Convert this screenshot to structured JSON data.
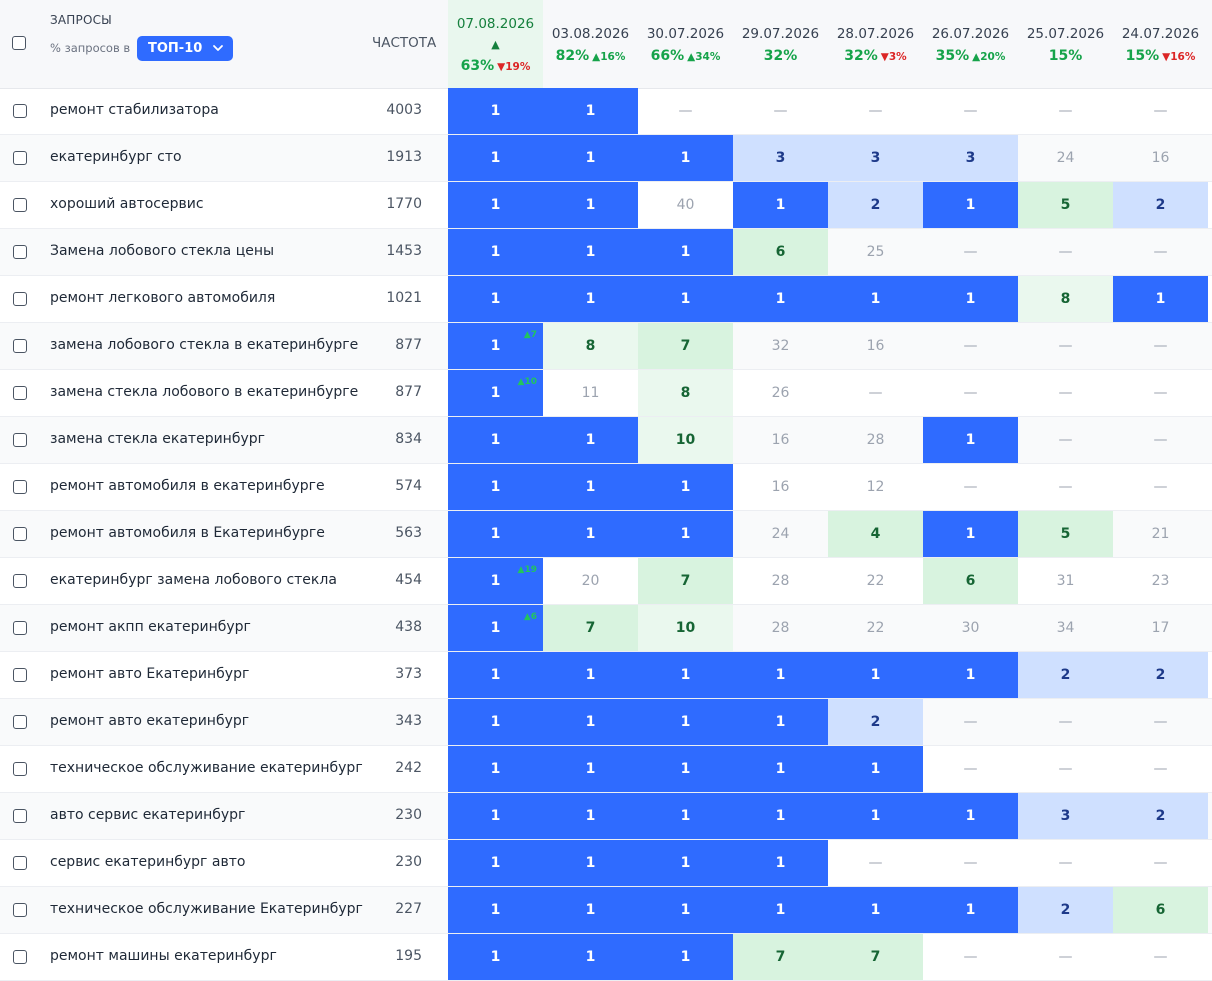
{
  "header": {
    "queries_label": "ЗАПРОСЫ",
    "subtitle": "% запросов в",
    "top_select": "ТОП-10",
    "frequency_label": "ЧАСТОТА",
    "dates": [
      {
        "date": "07.08.2026",
        "arrow": "▲",
        "pct": "63%",
        "change": "▼19%",
        "dir": "down"
      },
      {
        "date": "03.08.2026",
        "pct": "82%",
        "change": "▲16%",
        "dir": "up"
      },
      {
        "date": "30.07.2026",
        "pct": "66%",
        "change": "▲34%",
        "dir": "up"
      },
      {
        "date": "29.07.2026",
        "pct": "32%",
        "change": "",
        "dir": ""
      },
      {
        "date": "28.07.2026",
        "pct": "32%",
        "change": "▼3%",
        "dir": "down"
      },
      {
        "date": "26.07.2026",
        "pct": "35%",
        "change": "▲20%",
        "dir": "up"
      },
      {
        "date": "25.07.2026",
        "pct": "15%",
        "change": "",
        "dir": ""
      },
      {
        "date": "24.07.2026",
        "pct": "15%",
        "change": "▼16%",
        "dir": "down"
      }
    ]
  },
  "colors": {
    "top": "#2f6bff",
    "light_blue": "#cfe0ff",
    "green": "#d8f3df",
    "green_light": "#eaf8ee",
    "accent_green": "#16a34a",
    "accent_red": "#dc2626"
  },
  "rows": [
    {
      "query": "ремонт стабилизатора",
      "freq": "4003",
      "cells": [
        {
          "v": "1",
          "t": "top"
        },
        {
          "v": "1",
          "t": "top"
        },
        {
          "v": "—",
          "t": "dash"
        },
        {
          "v": "—",
          "t": "dash"
        },
        {
          "v": "—",
          "t": "dash"
        },
        {
          "v": "—",
          "t": "dash"
        },
        {
          "v": "—",
          "t": "dash"
        },
        {
          "v": "—",
          "t": "dash"
        }
      ]
    },
    {
      "query": "екатеринбург сто",
      "freq": "1913",
      "cells": [
        {
          "v": "1",
          "t": "top"
        },
        {
          "v": "1",
          "t": "top"
        },
        {
          "v": "1",
          "t": "top"
        },
        {
          "v": "3",
          "t": "light"
        },
        {
          "v": "3",
          "t": "light"
        },
        {
          "v": "3",
          "t": "light"
        },
        {
          "v": "24",
          "t": "plain"
        },
        {
          "v": "16",
          "t": "plain"
        }
      ]
    },
    {
      "query": "хороший автосервис",
      "freq": "1770",
      "cells": [
        {
          "v": "1",
          "t": "top"
        },
        {
          "v": "1",
          "t": "top"
        },
        {
          "v": "40",
          "t": "plain"
        },
        {
          "v": "1",
          "t": "top"
        },
        {
          "v": "2",
          "t": "light"
        },
        {
          "v": "1",
          "t": "top"
        },
        {
          "v": "5",
          "t": "green"
        },
        {
          "v": "2",
          "t": "light"
        }
      ]
    },
    {
      "query": "Замена лобового стекла цены",
      "freq": "1453",
      "cells": [
        {
          "v": "1",
          "t": "top"
        },
        {
          "v": "1",
          "t": "top"
        },
        {
          "v": "1",
          "t": "top"
        },
        {
          "v": "6",
          "t": "green"
        },
        {
          "v": "25",
          "t": "plain"
        },
        {
          "v": "—",
          "t": "dash"
        },
        {
          "v": "—",
          "t": "dash"
        },
        {
          "v": "—",
          "t": "dash"
        }
      ]
    },
    {
      "query": "ремонт легкового автомобиля",
      "freq": "1021",
      "cells": [
        {
          "v": "1",
          "t": "top"
        },
        {
          "v": "1",
          "t": "top"
        },
        {
          "v": "1",
          "t": "top"
        },
        {
          "v": "1",
          "t": "top"
        },
        {
          "v": "1",
          "t": "top"
        },
        {
          "v": "1",
          "t": "top"
        },
        {
          "v": "8",
          "t": "green-l"
        },
        {
          "v": "1",
          "t": "top"
        }
      ]
    },
    {
      "query": "замена лобового стекла в екатеринбурге",
      "freq": "877",
      "cells": [
        {
          "v": "1",
          "t": "top",
          "d": "▲7"
        },
        {
          "v": "8",
          "t": "green-l"
        },
        {
          "v": "7",
          "t": "green"
        },
        {
          "v": "32",
          "t": "plain"
        },
        {
          "v": "16",
          "t": "plain"
        },
        {
          "v": "—",
          "t": "dash"
        },
        {
          "v": "—",
          "t": "dash"
        },
        {
          "v": "—",
          "t": "dash"
        }
      ]
    },
    {
      "query": "замена стекла лобового в екатеринбурге",
      "freq": "877",
      "cells": [
        {
          "v": "1",
          "t": "top",
          "d": "▲10"
        },
        {
          "v": "11",
          "t": "plain"
        },
        {
          "v": "8",
          "t": "green-l"
        },
        {
          "v": "26",
          "t": "plain"
        },
        {
          "v": "—",
          "t": "dash"
        },
        {
          "v": "—",
          "t": "dash"
        },
        {
          "v": "—",
          "t": "dash"
        },
        {
          "v": "—",
          "t": "dash"
        }
      ]
    },
    {
      "query": "замена стекла екатеринбург",
      "freq": "834",
      "cells": [
        {
          "v": "1",
          "t": "top"
        },
        {
          "v": "1",
          "t": "top"
        },
        {
          "v": "10",
          "t": "green-l"
        },
        {
          "v": "16",
          "t": "plain"
        },
        {
          "v": "28",
          "t": "plain"
        },
        {
          "v": "1",
          "t": "top"
        },
        {
          "v": "—",
          "t": "dash"
        },
        {
          "v": "—",
          "t": "dash"
        }
      ]
    },
    {
      "query": "ремонт автомобиля в екатеринбурге",
      "freq": "574",
      "cells": [
        {
          "v": "1",
          "t": "top"
        },
        {
          "v": "1",
          "t": "top"
        },
        {
          "v": "1",
          "t": "top"
        },
        {
          "v": "16",
          "t": "plain"
        },
        {
          "v": "12",
          "t": "plain"
        },
        {
          "v": "—",
          "t": "dash"
        },
        {
          "v": "—",
          "t": "dash"
        },
        {
          "v": "—",
          "t": "dash"
        }
      ]
    },
    {
      "query": "ремонт автомобиля в Екатеринбурге",
      "freq": "563",
      "cells": [
        {
          "v": "1",
          "t": "top"
        },
        {
          "v": "1",
          "t": "top"
        },
        {
          "v": "1",
          "t": "top"
        },
        {
          "v": "24",
          "t": "plain"
        },
        {
          "v": "4",
          "t": "green"
        },
        {
          "v": "1",
          "t": "top"
        },
        {
          "v": "5",
          "t": "green"
        },
        {
          "v": "21",
          "t": "plain"
        }
      ]
    },
    {
      "query": "екатеринбург замена лобового стекла",
      "freq": "454",
      "cells": [
        {
          "v": "1",
          "t": "top",
          "d": "▲19"
        },
        {
          "v": "20",
          "t": "plain"
        },
        {
          "v": "7",
          "t": "green"
        },
        {
          "v": "28",
          "t": "plain"
        },
        {
          "v": "22",
          "t": "plain"
        },
        {
          "v": "6",
          "t": "green"
        },
        {
          "v": "31",
          "t": "plain"
        },
        {
          "v": "23",
          "t": "plain"
        }
      ]
    },
    {
      "query": "ремонт акпп екатеринбург",
      "freq": "438",
      "cells": [
        {
          "v": "1",
          "t": "top",
          "d": "▲6"
        },
        {
          "v": "7",
          "t": "green"
        },
        {
          "v": "10",
          "t": "green-l"
        },
        {
          "v": "28",
          "t": "plain"
        },
        {
          "v": "22",
          "t": "plain"
        },
        {
          "v": "30",
          "t": "plain"
        },
        {
          "v": "34",
          "t": "plain"
        },
        {
          "v": "17",
          "t": "plain"
        }
      ]
    },
    {
      "query": "ремонт авто Екатеринбург",
      "freq": "373",
      "cells": [
        {
          "v": "1",
          "t": "top"
        },
        {
          "v": "1",
          "t": "top"
        },
        {
          "v": "1",
          "t": "top"
        },
        {
          "v": "1",
          "t": "top"
        },
        {
          "v": "1",
          "t": "top"
        },
        {
          "v": "1",
          "t": "top"
        },
        {
          "v": "2",
          "t": "light"
        },
        {
          "v": "2",
          "t": "light"
        }
      ]
    },
    {
      "query": "ремонт авто екатеринбург",
      "freq": "343",
      "cells": [
        {
          "v": "1",
          "t": "top"
        },
        {
          "v": "1",
          "t": "top"
        },
        {
          "v": "1",
          "t": "top"
        },
        {
          "v": "1",
          "t": "top"
        },
        {
          "v": "2",
          "t": "light"
        },
        {
          "v": "—",
          "t": "dash"
        },
        {
          "v": "—",
          "t": "dash"
        },
        {
          "v": "—",
          "t": "dash"
        }
      ]
    },
    {
      "query": "техническое обслуживание екатеринбург",
      "freq": "242",
      "cells": [
        {
          "v": "1",
          "t": "top"
        },
        {
          "v": "1",
          "t": "top"
        },
        {
          "v": "1",
          "t": "top"
        },
        {
          "v": "1",
          "t": "top"
        },
        {
          "v": "1",
          "t": "top"
        },
        {
          "v": "—",
          "t": "dash"
        },
        {
          "v": "—",
          "t": "dash"
        },
        {
          "v": "—",
          "t": "dash"
        }
      ]
    },
    {
      "query": "авто сервис екатеринбург",
      "freq": "230",
      "cells": [
        {
          "v": "1",
          "t": "top"
        },
        {
          "v": "1",
          "t": "top"
        },
        {
          "v": "1",
          "t": "top"
        },
        {
          "v": "1",
          "t": "top"
        },
        {
          "v": "1",
          "t": "top"
        },
        {
          "v": "1",
          "t": "top"
        },
        {
          "v": "3",
          "t": "light"
        },
        {
          "v": "2",
          "t": "light"
        }
      ]
    },
    {
      "query": "сервис екатеринбург авто",
      "freq": "230",
      "cells": [
        {
          "v": "1",
          "t": "top"
        },
        {
          "v": "1",
          "t": "top"
        },
        {
          "v": "1",
          "t": "top"
        },
        {
          "v": "1",
          "t": "top"
        },
        {
          "v": "—",
          "t": "dash"
        },
        {
          "v": "—",
          "t": "dash"
        },
        {
          "v": "—",
          "t": "dash"
        },
        {
          "v": "—",
          "t": "dash"
        }
      ]
    },
    {
      "query": "техническое обслуживание Екатеринбург",
      "freq": "227",
      "cells": [
        {
          "v": "1",
          "t": "top"
        },
        {
          "v": "1",
          "t": "top"
        },
        {
          "v": "1",
          "t": "top"
        },
        {
          "v": "1",
          "t": "top"
        },
        {
          "v": "1",
          "t": "top"
        },
        {
          "v": "1",
          "t": "top"
        },
        {
          "v": "2",
          "t": "light"
        },
        {
          "v": "6",
          "t": "green"
        }
      ]
    },
    {
      "query": "ремонт машины екатеринбург",
      "freq": "195",
      "cells": [
        {
          "v": "1",
          "t": "top"
        },
        {
          "v": "1",
          "t": "top"
        },
        {
          "v": "1",
          "t": "top"
        },
        {
          "v": "7",
          "t": "green"
        },
        {
          "v": "7",
          "t": "green"
        },
        {
          "v": "—",
          "t": "dash"
        },
        {
          "v": "—",
          "t": "dash"
        },
        {
          "v": "—",
          "t": "dash"
        }
      ]
    }
  ]
}
